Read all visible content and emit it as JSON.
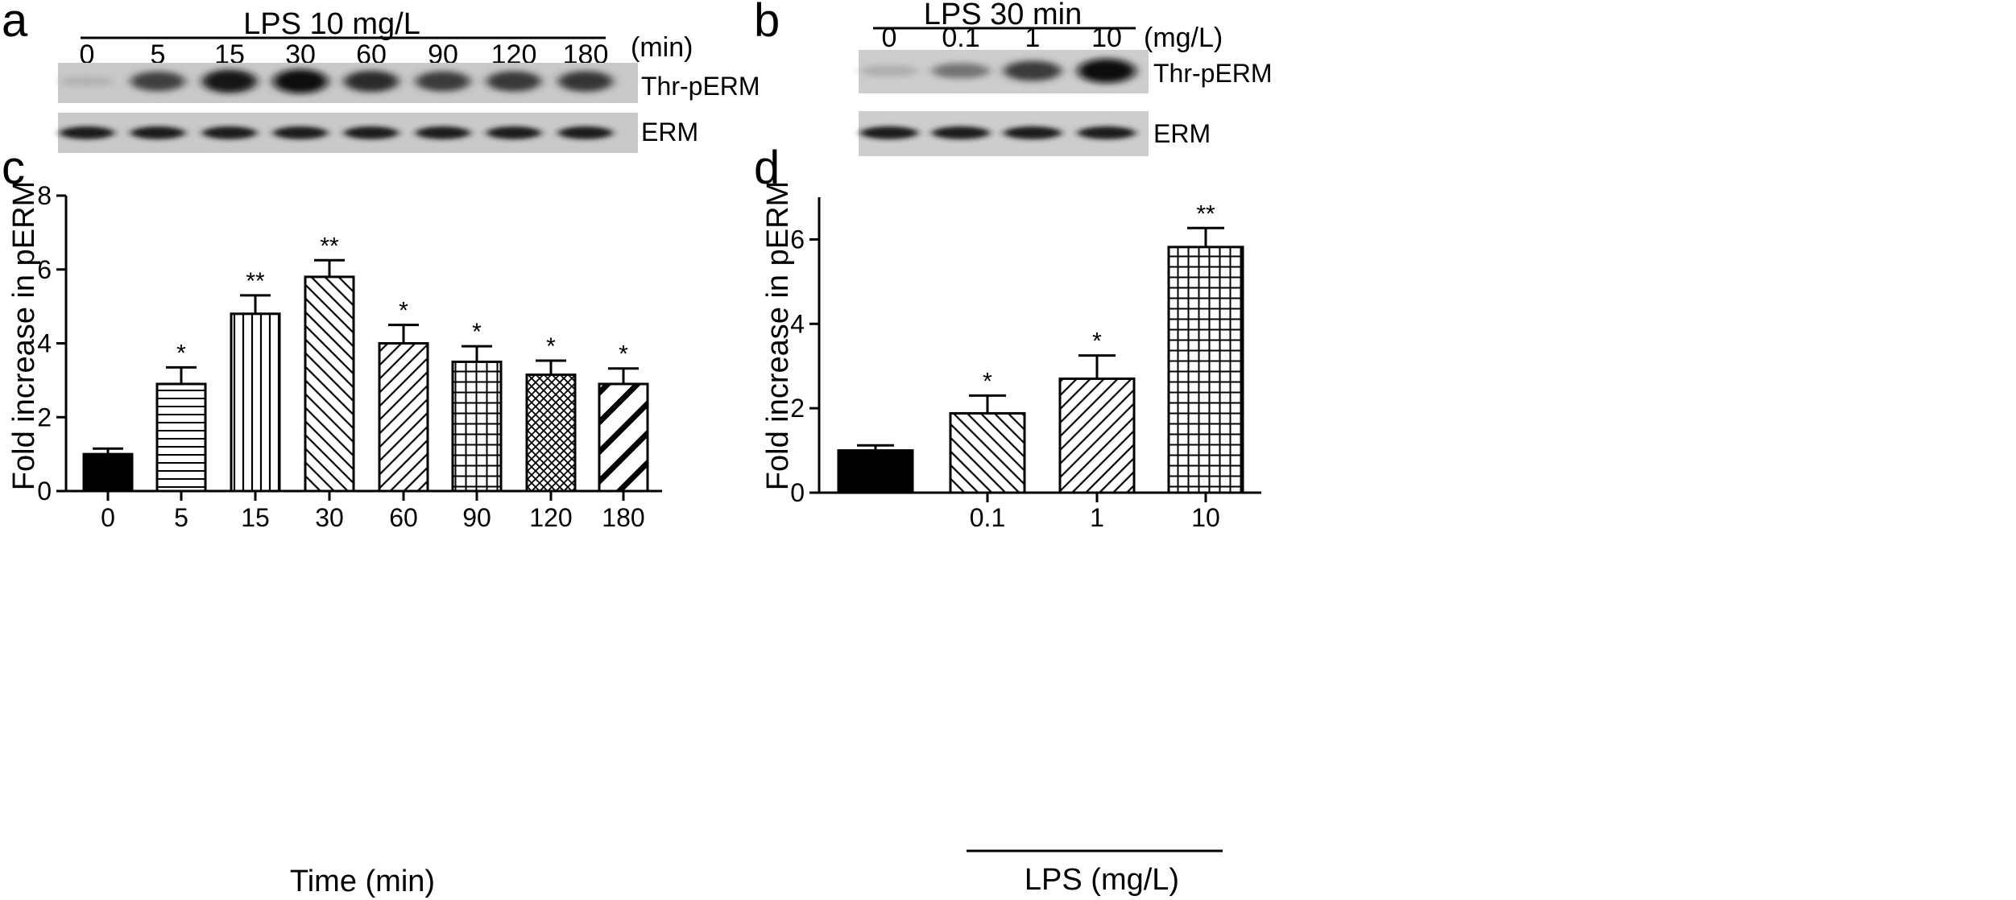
{
  "panel_a": {
    "letter": "a",
    "treatment": "LPS 10 mg/L",
    "unit": "(min)",
    "lanes": [
      "0",
      "5",
      "15",
      "30",
      "60",
      "90",
      "120",
      "180"
    ],
    "band_intensity": [
      0.12,
      0.72,
      0.95,
      1.0,
      0.82,
      0.75,
      0.76,
      0.78
    ],
    "row_labels": [
      "Thr-pERM",
      "ERM"
    ]
  },
  "panel_b": {
    "letter": "b",
    "treatment": "LPS 30 min",
    "unit": "(mg/L)",
    "lanes": [
      "0",
      "0.1",
      "1",
      "10"
    ],
    "band_intensity": [
      0.15,
      0.45,
      0.75,
      1.0
    ],
    "row_labels": [
      "Thr-pERM",
      "ERM"
    ]
  },
  "chart_data": [
    {
      "panel": "c",
      "type": "bar",
      "ylabel": "Fold increase in pERM",
      "xlabel": "Time (min)",
      "ylim": [
        0,
        8
      ],
      "yticks": [
        "0",
        "2",
        "4",
        "6",
        "8"
      ],
      "categories": [
        "0",
        "5",
        "15",
        "30",
        "60",
        "90",
        "120",
        "180"
      ],
      "values": [
        1.0,
        2.9,
        4.8,
        5.8,
        4.0,
        3.5,
        3.15,
        2.9
      ],
      "errors": [
        0.15,
        0.45,
        0.5,
        0.45,
        0.5,
        0.42,
        0.38,
        0.42
      ],
      "significance": [
        "",
        "*",
        "**",
        "**",
        "*",
        "*",
        "*",
        "*"
      ],
      "patterns": [
        "solid",
        "hlines",
        "vlines",
        "diag-up",
        "diag-down",
        "grid",
        "crosshatch",
        "thick-diag-down"
      ]
    },
    {
      "panel": "d",
      "type": "bar",
      "ylabel": "Fold increase in pERM",
      "xlabel": "LPS (mg/L)",
      "ylim": [
        0,
        7
      ],
      "yticks": [
        "0",
        "2",
        "4",
        "6"
      ],
      "categories": [
        "",
        "0.1",
        "1",
        "10"
      ],
      "values": [
        1.0,
        1.88,
        2.7,
        5.82
      ],
      "errors": [
        0.12,
        0.42,
        0.55,
        0.45
      ],
      "significance": [
        "",
        "*",
        "*",
        "**"
      ],
      "patterns": [
        "solid",
        "diag-up",
        "diag-down",
        "grid"
      ]
    }
  ]
}
